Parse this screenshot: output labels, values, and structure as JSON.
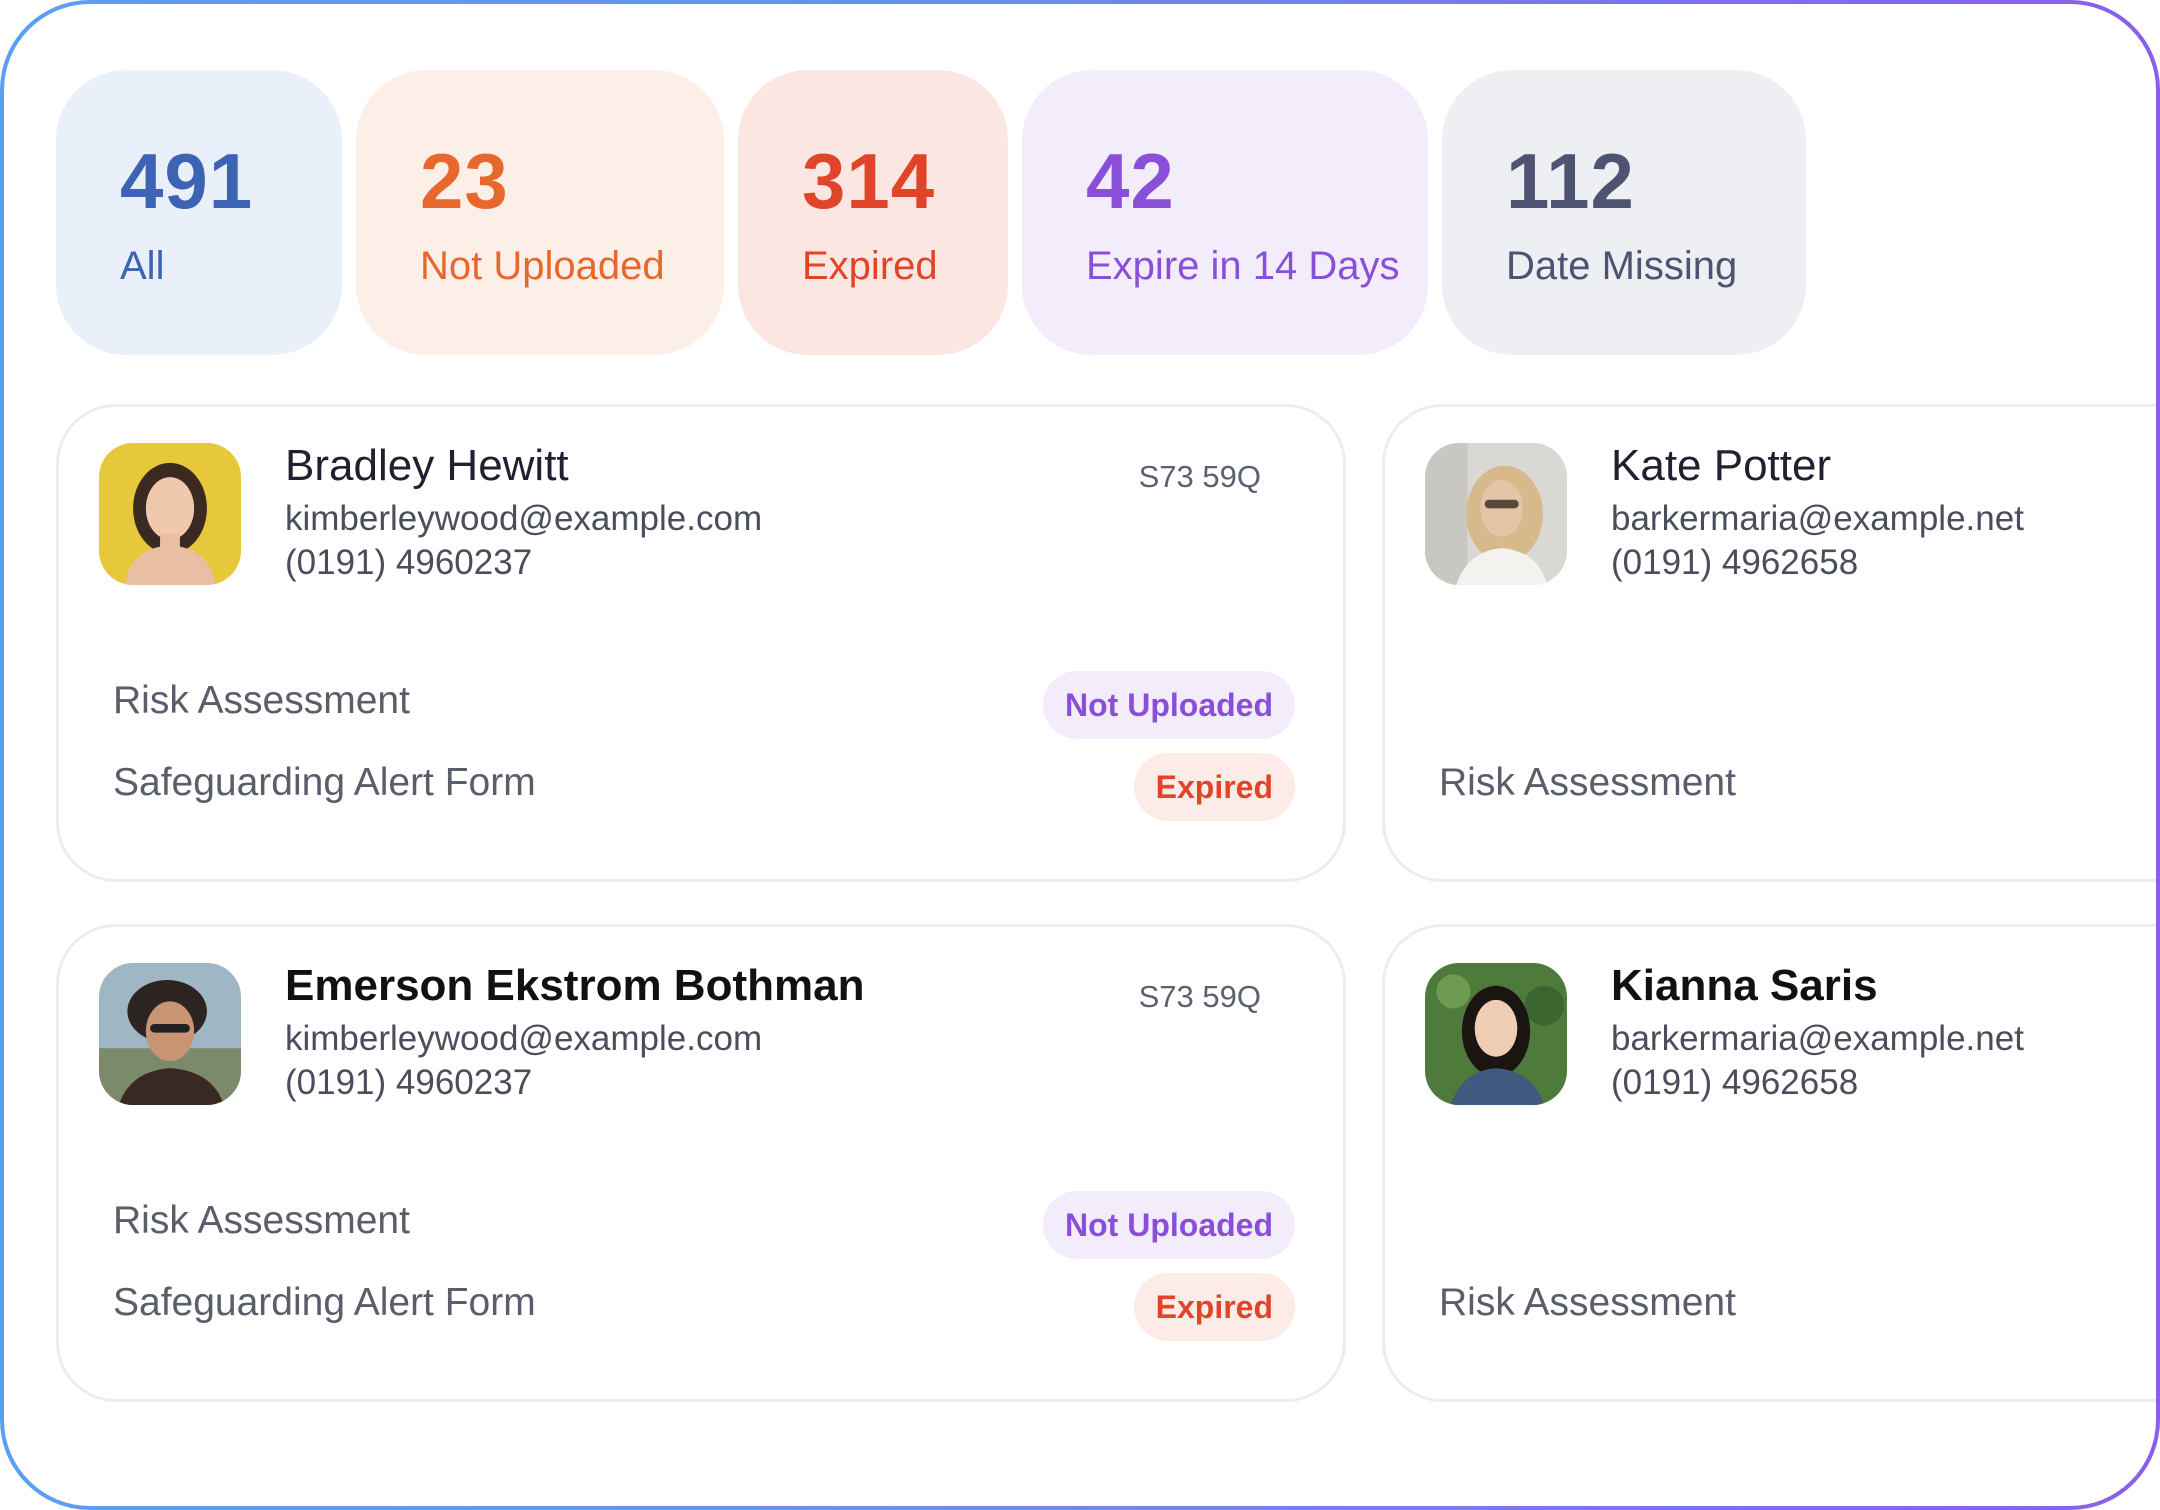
{
  "stats": [
    {
      "value": "491",
      "label": "All"
    },
    {
      "value": "23",
      "label": "Not Uploaded"
    },
    {
      "value": "314",
      "label": "Expired"
    },
    {
      "value": "42",
      "label": "Expire in 14 Days"
    },
    {
      "value": "112",
      "label": "Date Missing"
    }
  ],
  "people": [
    {
      "name": "Bradley Hewitt",
      "email": "kimberleywood@example.com",
      "phone": "(0191) 4960237",
      "code": "S73 59Q",
      "docs": [
        {
          "label": "Risk Assessment",
          "status": "Not Uploaded"
        },
        {
          "label": "Safeguarding Alert Form",
          "status": "Expired"
        }
      ]
    },
    {
      "name": "Kate Potter",
      "email": "barkermaria@example.net",
      "phone": "(0191) 4962658",
      "docs": [
        {
          "label": "Risk Assessment"
        }
      ]
    },
    {
      "name": "Emerson Ekstrom Bothman",
      "email": "kimberleywood@example.com",
      "phone": "(0191) 4960237",
      "code": "S73 59Q",
      "docs": [
        {
          "label": "Risk Assessment",
          "status": "Not Uploaded"
        },
        {
          "label": "Safeguarding Alert Form",
          "status": "Expired"
        }
      ]
    },
    {
      "name": "Kianna Saris",
      "email": "barkermaria@example.net",
      "phone": "(0191) 4962658",
      "docs": [
        {
          "label": "Risk Assessment"
        }
      ]
    }
  ],
  "colors": {
    "all": "#3c63b4",
    "not_uploaded": "#e8672d",
    "expired": "#e0452a",
    "expire_14": "#8a4fd8",
    "date_missing": "#4e5372"
  }
}
